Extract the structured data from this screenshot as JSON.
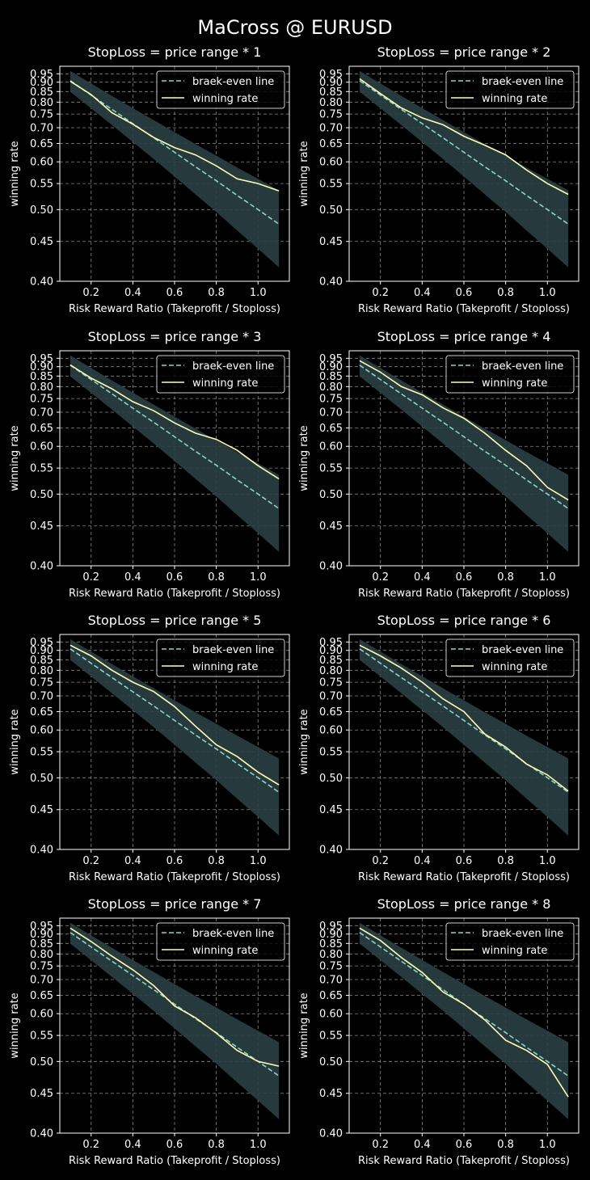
{
  "suptitle": "MaCross @ EURUSD",
  "colors": {
    "background": "#000000",
    "breakeven": "#8dd3c7",
    "winning": "#feffb3",
    "band": "#2a3f44",
    "grid": "#888888",
    "axes": "#ffffff"
  },
  "chart_data": [
    {
      "type": "line",
      "title": "StopLoss = price range * 1",
      "xlabel": "Risk Reward Ratio (Takeprofit / Stoploss)",
      "ylabel": "winning rate",
      "xlim": [
        0.05,
        1.15
      ],
      "ylim": [
        0.4,
        1.0
      ],
      "yscale": "reciprocal",
      "xticks": [
        "0.2",
        "0.4",
        "0.6",
        "0.8",
        "1.0"
      ],
      "yticks": [
        "0.40",
        "0.45",
        "0.50",
        "0.55",
        "0.60",
        "0.65",
        "0.70",
        "0.75",
        "0.80",
        "0.85",
        "0.90",
        "0.95"
      ],
      "grid": true,
      "legend_loc": "upper right",
      "x": [
        0.1,
        0.2,
        0.3,
        0.4,
        0.5,
        0.6,
        0.7,
        0.8,
        0.9,
        1.0,
        1.1
      ],
      "band": {
        "lower_offset": -0.06,
        "upper_offset": 0.06
      },
      "series": [
        {
          "name": "braek-even line",
          "style": "dashed",
          "values": [
            0.909,
            0.833,
            0.769,
            0.714,
            0.667,
            0.625,
            0.588,
            0.556,
            0.526,
            0.5,
            0.476
          ]
        },
        {
          "name": "winning rate",
          "style": "solid",
          "values": [
            0.905,
            0.835,
            0.755,
            0.712,
            0.668,
            0.638,
            0.618,
            0.59,
            0.56,
            0.55,
            0.535
          ]
        }
      ]
    },
    {
      "type": "line",
      "title": "StopLoss = price range * 2",
      "xlabel": "Risk Reward Ratio (Takeprofit / Stoploss)",
      "ylabel": "winning rate",
      "xlim": [
        0.05,
        1.15
      ],
      "ylim": [
        0.4,
        1.0
      ],
      "yscale": "reciprocal",
      "xticks": [
        "0.2",
        "0.4",
        "0.6",
        "0.8",
        "1.0"
      ],
      "yticks": [
        "0.40",
        "0.45",
        "0.50",
        "0.55",
        "0.60",
        "0.65",
        "0.70",
        "0.75",
        "0.80",
        "0.85",
        "0.90",
        "0.95"
      ],
      "grid": true,
      "legend_loc": "upper right",
      "x": [
        0.1,
        0.2,
        0.3,
        0.4,
        0.5,
        0.6,
        0.7,
        0.8,
        0.9,
        1.0,
        1.1
      ],
      "band": {
        "lower_offset": -0.06,
        "upper_offset": 0.06
      },
      "series": [
        {
          "name": "braek-even line",
          "style": "dashed",
          "values": [
            0.909,
            0.833,
            0.769,
            0.714,
            0.667,
            0.625,
            0.588,
            0.556,
            0.526,
            0.5,
            0.476
          ]
        },
        {
          "name": "winning rate",
          "style": "solid",
          "values": [
            0.92,
            0.84,
            0.775,
            0.735,
            0.71,
            0.672,
            0.645,
            0.618,
            0.58,
            0.55,
            0.528
          ]
        }
      ]
    },
    {
      "type": "line",
      "title": "StopLoss = price range * 3",
      "xlabel": "Risk Reward Ratio (Takeprofit / Stoploss)",
      "ylabel": "winning rate",
      "xlim": [
        0.05,
        1.15
      ],
      "ylim": [
        0.4,
        1.0
      ],
      "yscale": "reciprocal",
      "xticks": [
        "0.2",
        "0.4",
        "0.6",
        "0.8",
        "1.0"
      ],
      "yticks": [
        "0.40",
        "0.45",
        "0.50",
        "0.55",
        "0.60",
        "0.65",
        "0.70",
        "0.75",
        "0.80",
        "0.85",
        "0.90",
        "0.95"
      ],
      "grid": true,
      "legend_loc": "upper right",
      "x": [
        0.1,
        0.2,
        0.3,
        0.4,
        0.5,
        0.6,
        0.7,
        0.8,
        0.9,
        1.0,
        1.1
      ],
      "band": {
        "lower_offset": -0.06,
        "upper_offset": 0.06
      },
      "series": [
        {
          "name": "braek-even line",
          "style": "dashed",
          "values": [
            0.909,
            0.833,
            0.769,
            0.714,
            0.667,
            0.625,
            0.588,
            0.556,
            0.526,
            0.5,
            0.476
          ]
        },
        {
          "name": "winning rate",
          "style": "solid",
          "values": [
            0.91,
            0.84,
            0.79,
            0.738,
            0.705,
            0.665,
            0.635,
            0.618,
            0.59,
            0.555,
            0.528
          ]
        }
      ]
    },
    {
      "type": "line",
      "title": "StopLoss = price range * 4",
      "xlabel": "Risk Reward Ratio (Takeprofit / Stoploss)",
      "ylabel": "winning rate",
      "xlim": [
        0.05,
        1.15
      ],
      "ylim": [
        0.4,
        1.0
      ],
      "yscale": "reciprocal",
      "xticks": [
        "0.2",
        "0.4",
        "0.6",
        "0.8",
        "1.0"
      ],
      "yticks": [
        "0.40",
        "0.45",
        "0.50",
        "0.55",
        "0.60",
        "0.65",
        "0.70",
        "0.75",
        "0.80",
        "0.85",
        "0.90",
        "0.95"
      ],
      "grid": true,
      "legend_loc": "upper right",
      "x": [
        0.1,
        0.2,
        0.3,
        0.4,
        0.5,
        0.6,
        0.7,
        0.8,
        0.9,
        1.0,
        1.1
      ],
      "band": {
        "lower_offset": -0.06,
        "upper_offset": 0.06
      },
      "series": [
        {
          "name": "braek-even line",
          "style": "dashed",
          "values": [
            0.909,
            0.833,
            0.769,
            0.714,
            0.667,
            0.625,
            0.588,
            0.556,
            0.526,
            0.5,
            0.476
          ]
        },
        {
          "name": "winning rate",
          "style": "solid",
          "values": [
            0.935,
            0.87,
            0.8,
            0.765,
            0.715,
            0.68,
            0.635,
            0.59,
            0.555,
            0.512,
            0.49
          ]
        }
      ]
    },
    {
      "type": "line",
      "title": "StopLoss = price range * 5",
      "xlabel": "Risk Reward Ratio (Takeprofit / Stoploss)",
      "ylabel": "winning rate",
      "xlim": [
        0.05,
        1.15
      ],
      "ylim": [
        0.4,
        1.0
      ],
      "yscale": "reciprocal",
      "xticks": [
        "0.2",
        "0.4",
        "0.6",
        "0.8",
        "1.0"
      ],
      "yticks": [
        "0.40",
        "0.45",
        "0.50",
        "0.55",
        "0.60",
        "0.65",
        "0.70",
        "0.75",
        "0.80",
        "0.85",
        "0.90",
        "0.95"
      ],
      "grid": true,
      "legend_loc": "upper right",
      "x": [
        0.1,
        0.2,
        0.3,
        0.4,
        0.5,
        0.6,
        0.7,
        0.8,
        0.9,
        1.0,
        1.1
      ],
      "band": {
        "lower_offset": -0.06,
        "upper_offset": 0.06
      },
      "series": [
        {
          "name": "braek-even line",
          "style": "dashed",
          "values": [
            0.909,
            0.833,
            0.769,
            0.714,
            0.667,
            0.625,
            0.588,
            0.556,
            0.526,
            0.5,
            0.476
          ]
        },
        {
          "name": "winning rate",
          "style": "solid",
          "values": [
            0.93,
            0.87,
            0.8,
            0.75,
            0.715,
            0.665,
            0.61,
            0.565,
            0.54,
            0.51,
            0.488
          ]
        }
      ]
    },
    {
      "type": "line",
      "title": "StopLoss = price range * 6",
      "xlabel": "Risk Reward Ratio (Takeprofit / Stoploss)",
      "ylabel": "winning rate",
      "xlim": [
        0.05,
        1.15
      ],
      "ylim": [
        0.4,
        1.0
      ],
      "yscale": "reciprocal",
      "xticks": [
        "0.2",
        "0.4",
        "0.6",
        "0.8",
        "1.0"
      ],
      "yticks": [
        "0.40",
        "0.45",
        "0.50",
        "0.55",
        "0.60",
        "0.65",
        "0.70",
        "0.75",
        "0.80",
        "0.85",
        "0.90",
        "0.95"
      ],
      "grid": true,
      "legend_loc": "upper right",
      "x": [
        0.1,
        0.2,
        0.3,
        0.4,
        0.5,
        0.6,
        0.7,
        0.8,
        0.9,
        1.0,
        1.1
      ],
      "band": {
        "lower_offset": -0.06,
        "upper_offset": 0.06
      },
      "series": [
        {
          "name": "braek-even line",
          "style": "dashed",
          "values": [
            0.909,
            0.833,
            0.769,
            0.714,
            0.667,
            0.625,
            0.588,
            0.556,
            0.526,
            0.5,
            0.476
          ]
        },
        {
          "name": "winning rate",
          "style": "solid",
          "values": [
            0.93,
            0.87,
            0.81,
            0.75,
            0.69,
            0.65,
            0.59,
            0.56,
            0.525,
            0.505,
            0.478
          ]
        }
      ]
    },
    {
      "type": "line",
      "title": "StopLoss = price range * 7",
      "xlabel": "Risk Reward Ratio (Takeprofit / Stoploss)",
      "ylabel": "winning rate",
      "xlim": [
        0.05,
        1.15
      ],
      "ylim": [
        0.4,
        1.0
      ],
      "yscale": "reciprocal",
      "xticks": [
        "0.2",
        "0.4",
        "0.6",
        "0.8",
        "1.0"
      ],
      "yticks": [
        "0.40",
        "0.45",
        "0.50",
        "0.55",
        "0.60",
        "0.65",
        "0.70",
        "0.75",
        "0.80",
        "0.85",
        "0.90",
        "0.95"
      ],
      "grid": true,
      "legend_loc": "upper right",
      "x": [
        0.1,
        0.2,
        0.3,
        0.4,
        0.5,
        0.6,
        0.7,
        0.8,
        0.9,
        1.0,
        1.1
      ],
      "band": {
        "lower_offset": -0.06,
        "upper_offset": 0.06
      },
      "series": [
        {
          "name": "braek-even line",
          "style": "dashed",
          "values": [
            0.909,
            0.833,
            0.769,
            0.714,
            0.667,
            0.625,
            0.588,
            0.556,
            0.526,
            0.5,
            0.476
          ]
        },
        {
          "name": "winning rate",
          "style": "solid",
          "values": [
            0.935,
            0.86,
            0.79,
            0.735,
            0.68,
            0.62,
            0.59,
            0.555,
            0.52,
            0.5,
            0.492
          ]
        }
      ]
    },
    {
      "type": "line",
      "title": "StopLoss = price range * 8",
      "xlabel": "Risk Reward Ratio (Takeprofit / Stoploss)",
      "ylabel": "winning rate",
      "xlim": [
        0.05,
        1.15
      ],
      "ylim": [
        0.4,
        1.0
      ],
      "yscale": "reciprocal",
      "xticks": [
        "0.2",
        "0.4",
        "0.6",
        "0.8",
        "1.0"
      ],
      "yticks": [
        "0.40",
        "0.45",
        "0.50",
        "0.55",
        "0.60",
        "0.65",
        "0.70",
        "0.75",
        "0.80",
        "0.85",
        "0.90",
        "0.95"
      ],
      "grid": true,
      "legend_loc": "upper right",
      "x": [
        0.1,
        0.2,
        0.3,
        0.4,
        0.5,
        0.6,
        0.7,
        0.8,
        0.9,
        1.0,
        1.1
      ],
      "band": {
        "lower_offset": -0.06,
        "upper_offset": 0.06
      },
      "series": [
        {
          "name": "braek-even line",
          "style": "dashed",
          "values": [
            0.909,
            0.833,
            0.769,
            0.714,
            0.667,
            0.625,
            0.588,
            0.556,
            0.526,
            0.5,
            0.476
          ]
        },
        {
          "name": "winning rate",
          "style": "solid",
          "values": [
            0.935,
            0.865,
            0.785,
            0.725,
            0.66,
            0.625,
            0.585,
            0.54,
            0.52,
            0.495,
            0.445
          ]
        }
      ]
    }
  ]
}
